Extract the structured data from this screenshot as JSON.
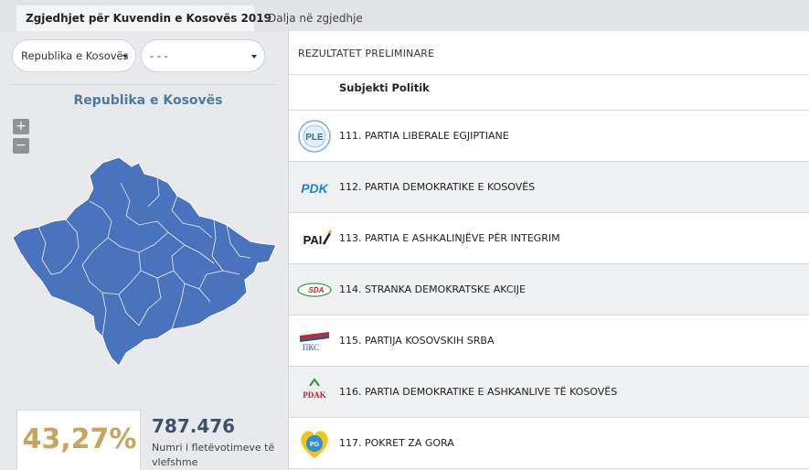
{
  "tabs": [
    {
      "label": "Zgjedhjet për Kuvendin e Kosovës 2019",
      "active": true
    },
    {
      "label": "Dalja në zgjedhje",
      "active": false
    }
  ],
  "filters": {
    "region_select": "Republika e Kosovës",
    "municipality_select": "- - -"
  },
  "map": {
    "title": "Republika e Kosovës",
    "zoom_in": "+",
    "zoom_out": "−",
    "fill_color": "#4a73bd"
  },
  "stats": {
    "turnout": "43,27%",
    "valid_votes": "787.476",
    "valid_votes_label": "Numri i fletëvotimeve të vlefshme"
  },
  "results": {
    "title": "REZULTATET PRELIMINARE",
    "column_header": "Subjekti Politik",
    "parties": [
      {
        "label": "111. PARTIA LIBERALE EGJIPTIANE",
        "logo_text": "PLE"
      },
      {
        "label": "112. PARTIA DEMOKRATIKE E KOSOVËS",
        "logo_text": "PDK"
      },
      {
        "label": "113. PARTIA E ASHKALINJËVE PËR INTEGRIM",
        "logo_text": "PAI"
      },
      {
        "label": "114. STRANKA DEMOKRATSKE AKCIJE",
        "logo_text": "SDA"
      },
      {
        "label": "115. PARTIJA KOSOVSKIH SRBA",
        "logo_text": "ПКС"
      },
      {
        "label": "116. PARTIA DEMOKRATIKE E ASHKANLIVE TË KOSOVËS",
        "logo_text": "PDAK"
      },
      {
        "label": "117. POKRET ZA GORA",
        "logo_text": "PG"
      }
    ]
  }
}
